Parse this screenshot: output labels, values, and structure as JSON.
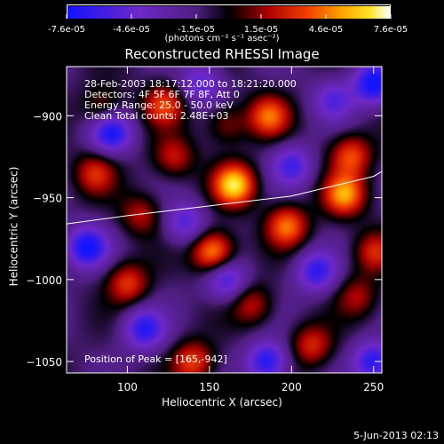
{
  "colorbar": {
    "ticks": [
      "-7.6e-05",
      "-4.6e-05",
      "-1.5e-05",
      "1.5e-05",
      "4.6e-05",
      "7.6e-05"
    ],
    "units": "(photons cm⁻² s⁻¹ asec⁻²)",
    "min": -7.6e-05,
    "max": 7.6e-05
  },
  "title": "Reconstructed RHESSI Image",
  "info": {
    "line1": "28-Feb-2003 18:17:12.000 to 18:21:20.000",
    "line2": "Detectors: 4F 5F 6F 7F 8F, Att 0",
    "line3": "Energy Range: 25.0 - 50.0 keV",
    "line4": "Clean     Total counts: 2.48E+03",
    "peak": "Position of Peak = [165,-942]"
  },
  "chart_data": {
    "type": "heatmap",
    "title": "Reconstructed RHESSI Image",
    "xlabel": "Heliocentric X (arcsec)",
    "ylabel": "Heliocentric Y (arcsec)",
    "xlim": [
      63,
      255
    ],
    "ylim": [
      -1057,
      -870
    ],
    "xticks": [
      100,
      150,
      200,
      250
    ],
    "yticks": [
      -900,
      -950,
      -1000,
      -1050
    ],
    "colorbar_range": [
      -7.6e-05,
      7.6e-05
    ],
    "peak_position": [
      165,
      -942
    ],
    "limb_curve": {
      "x": [
        63,
        100,
        150,
        200,
        250,
        255
      ],
      "y": [
        -966,
        -961,
        -955,
        -949,
        -937,
        -934
      ]
    },
    "blobs": [
      {
        "x": 165,
        "y": -942,
        "v": 7.6e-05
      },
      {
        "x": 152,
        "y": -983,
        "v": 6.8e-05
      },
      {
        "x": 232,
        "y": -948,
        "v": 6.2e-05
      },
      {
        "x": 197,
        "y": -967,
        "v": 5.5e-05
      },
      {
        "x": 186,
        "y": -900,
        "v": 5.2e-05
      },
      {
        "x": 236,
        "y": -924,
        "v": 4.8e-05
      },
      {
        "x": 122,
        "y": -893,
        "v": 4.5e-05
      },
      {
        "x": 100,
        "y": -1002,
        "v": 4.4e-05
      },
      {
        "x": 140,
        "y": -1050,
        "v": 4.6e-05
      },
      {
        "x": 80,
        "y": -935,
        "v": 3.9e-05
      },
      {
        "x": 212,
        "y": -1040,
        "v": 4e-05
      },
      {
        "x": 250,
        "y": -983,
        "v": 3.8e-05
      },
      {
        "x": 128,
        "y": -925,
        "v": 3.6e-05
      },
      {
        "x": 176,
        "y": -1015,
        "v": 3.4e-05
      },
      {
        "x": 108,
        "y": -960,
        "v": 3.2e-05
      },
      {
        "x": 85,
        "y": -895,
        "v": 3e-05
      },
      {
        "x": 240,
        "y": -1010,
        "v": 2.9e-05
      },
      {
        "x": 160,
        "y": -905,
        "v": 2.8e-05
      },
      {
        "x": 90,
        "y": -910,
        "v": -6e-05
      },
      {
        "x": 75,
        "y": -980,
        "v": -6.5e-05
      },
      {
        "x": 110,
        "y": -1030,
        "v": -5.5e-05
      },
      {
        "x": 185,
        "y": -1050,
        "v": -6e-05
      },
      {
        "x": 250,
        "y": -1050,
        "v": -5.8e-05
      },
      {
        "x": 250,
        "y": -880,
        "v": -6.8e-05
      },
      {
        "x": 200,
        "y": -930,
        "v": -4.5e-05
      },
      {
        "x": 160,
        "y": -1000,
        "v": -4.8e-05
      },
      {
        "x": 215,
        "y": -995,
        "v": -5.2e-05
      },
      {
        "x": 135,
        "y": -965,
        "v": -4.2e-05
      },
      {
        "x": 145,
        "y": -880,
        "v": -4e-05
      },
      {
        "x": 225,
        "y": -890,
        "v": -3.8e-05
      }
    ]
  },
  "footer": {
    "date": "5-Jun-2013 02:13"
  }
}
